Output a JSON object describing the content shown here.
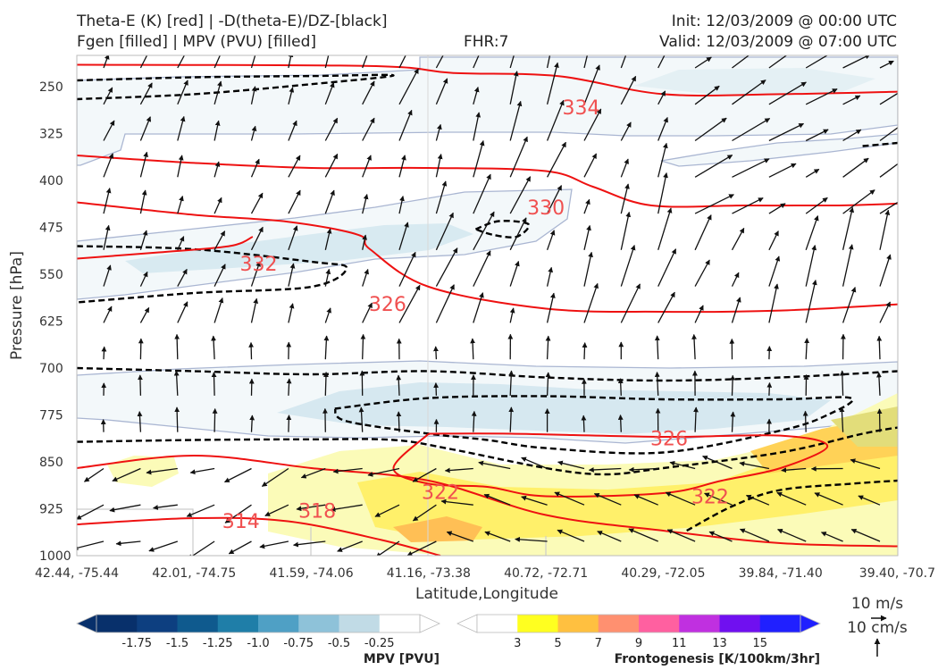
{
  "header": {
    "title_line1": "Theta-E (K) [red] | -D(theta-E)/DZ-[black]",
    "title_line2": "Fgen [filled] | MPV (PVU) [filled]",
    "fhr": "FHR:7",
    "init": "Init: 12/03/2009 @ 00:00 UTC",
    "valid": "Valid: 12/03/2009 @ 07:00 UTC"
  },
  "chart_data": {
    "type": "cross-section",
    "xlabel": "Latitude,Longitude",
    "ylabel": "Pressure [hPa]",
    "x_ticks": [
      "42.44, -75.44",
      "42.01, -74.75",
      "41.59, -74.06",
      "41.16, -73.38",
      "40.72, -72.71",
      "40.29, -72.05",
      "39.84, -71.40",
      "39.40, -70.7"
    ],
    "y_ticks": [
      250,
      325,
      400,
      475,
      550,
      625,
      700,
      775,
      850,
      925,
      1000
    ],
    "ylim": [
      1000,
      200
    ],
    "theta_e_labels": [
      {
        "value": "334",
        "x": 4.3,
        "p": 283
      },
      {
        "value": "330",
        "x": 4.0,
        "p": 443
      },
      {
        "value": "332",
        "x": 1.55,
        "p": 533
      },
      {
        "value": "326",
        "x": 2.65,
        "p": 597
      },
      {
        "value": "326",
        "x": 5.05,
        "p": 812
      },
      {
        "value": "322",
        "x": 3.1,
        "p": 898
      },
      {
        "value": "318",
        "x": 2.05,
        "p": 928
      },
      {
        "value": "314",
        "x": 1.4,
        "p": 944
      },
      {
        "value": "322",
        "x": 5.4,
        "p": 905
      }
    ],
    "theta_e_contours": [
      {
        "value": 334,
        "points": [
          [
            0,
            215
          ],
          [
            2.5,
            217
          ],
          [
            3.2,
            228
          ],
          [
            4.1,
            233
          ],
          [
            5,
            262
          ],
          [
            6,
            262
          ],
          [
            7,
            258
          ]
        ]
      },
      {
        "value": 330,
        "points": [
          [
            0,
            360
          ],
          [
            1,
            372
          ],
          [
            2,
            380
          ],
          [
            3,
            380
          ],
          [
            4,
            385
          ],
          [
            4.4,
            410
          ],
          [
            4.9,
            440
          ],
          [
            5.7,
            440
          ],
          [
            6.5,
            440
          ],
          [
            7,
            437
          ]
        ]
      },
      {
        "value": 326,
        "points": [
          [
            0,
            435
          ],
          [
            1,
            455
          ],
          [
            1.8,
            466
          ],
          [
            2.4,
            487
          ],
          [
            2.5,
            510
          ],
          [
            3,
            570
          ],
          [
            4,
            605
          ],
          [
            5,
            610
          ],
          [
            6,
            608
          ],
          [
            7,
            598
          ]
        ]
      },
      {
        "value": 322,
        "points": [
          [
            0,
            525
          ],
          [
            0.7,
            515
          ],
          [
            1.3,
            505
          ],
          [
            1.5,
            490
          ]
        ]
      },
      {
        "value": 322,
        "points": [
          [
            3.0,
            805
          ],
          [
            3.7,
            805
          ],
          [
            5,
            810
          ],
          [
            6,
            808
          ],
          [
            6.4,
            825
          ],
          [
            6,
            860
          ],
          [
            5.5,
            880
          ],
          [
            5,
            900
          ],
          [
            4,
            905
          ],
          [
            3.5,
            890
          ],
          [
            3,
            885
          ],
          [
            2.7,
            860
          ],
          [
            3,
            805
          ]
        ]
      },
      {
        "value": 318,
        "points": [
          [
            0,
            860
          ],
          [
            1,
            840
          ],
          [
            2,
            860
          ],
          [
            3,
            880
          ],
          [
            4,
            935
          ],
          [
            5,
            960
          ],
          [
            6,
            980
          ],
          [
            7,
            985
          ]
        ]
      },
      {
        "value": 314,
        "points": [
          [
            0,
            950
          ],
          [
            1,
            940
          ],
          [
            1.8,
            945
          ],
          [
            2.6,
            975
          ],
          [
            3.1,
            1000
          ]
        ]
      }
    ],
    "dthetae_dz_contours": [
      {
        "points": [
          [
            0,
            240
          ],
          [
            1,
            235
          ],
          [
            2,
            233
          ],
          [
            2.7,
            232
          ],
          [
            2,
            246
          ],
          [
            1,
            262
          ],
          [
            0,
            270
          ]
        ]
      },
      {
        "points": [
          [
            3.4,
            478
          ],
          [
            3.6,
            465
          ],
          [
            3.85,
            470
          ],
          [
            3.75,
            490
          ],
          [
            3.55,
            487
          ],
          [
            3.4,
            478
          ]
        ]
      },
      {
        "points": [
          [
            0,
            505
          ],
          [
            1,
            510
          ],
          [
            2,
            530
          ],
          [
            2.3,
            540
          ],
          [
            2,
            570
          ],
          [
            1,
            580
          ],
          [
            0,
            595
          ]
        ]
      },
      {
        "points": [
          [
            0,
            700
          ],
          [
            1,
            705
          ],
          [
            2,
            710
          ],
          [
            3,
            705
          ],
          [
            4,
            715
          ],
          [
            5,
            720
          ],
          [
            6,
            715
          ],
          [
            7,
            705
          ]
        ]
      },
      {
        "points": [
          [
            2.2,
            765
          ],
          [
            3,
            748
          ],
          [
            4,
            745
          ],
          [
            5,
            750
          ],
          [
            6,
            750
          ],
          [
            6.6,
            748
          ],
          [
            6.4,
            775
          ],
          [
            6,
            800
          ],
          [
            5,
            835
          ],
          [
            4,
            828
          ],
          [
            3.5,
            815
          ],
          [
            3,
            805
          ],
          [
            2.3,
            785
          ],
          [
            2.2,
            765
          ]
        ]
      },
      {
        "points": [
          [
            0,
            818
          ],
          [
            1,
            815
          ],
          [
            2,
            814
          ],
          [
            2.7,
            815
          ],
          [
            3.2,
            830
          ],
          [
            4,
            860
          ],
          [
            4.5,
            870
          ],
          [
            5,
            860
          ],
          [
            6,
            835
          ],
          [
            6.7,
            805
          ],
          [
            7,
            795
          ]
        ]
      },
      {
        "points": [
          [
            6.7,
            345
          ],
          [
            7,
            340
          ]
        ]
      },
      {
        "points": [
          [
            5.2,
            960
          ],
          [
            5.6,
            920
          ],
          [
            6,
            895
          ],
          [
            6.6,
            885
          ],
          [
            7,
            880
          ]
        ]
      }
    ],
    "mpv_colorbar": {
      "label": "MPV [PVU]",
      "ticks": [
        "-1.75",
        "-1.5",
        "-1.25",
        "-1.0",
        "-0.75",
        "-0.5",
        "-0.25"
      ],
      "colors": [
        "#08306b",
        "#0d3f80",
        "#0f5a8e",
        "#1f7ea8",
        "#4fa0c5",
        "#8ec2d9",
        "#c1dbe6",
        "#ffffff"
      ]
    },
    "fgen_colorbar": {
      "label": "Frontogenesis [K/100km/3hr]",
      "ticks": [
        "3",
        "5",
        "7",
        "9",
        "11",
        "13",
        "15"
      ],
      "colors": [
        "#ffffff",
        "#ffff20",
        "#ffc040",
        "#ff9070",
        "#ff60a0",
        "#c030e0",
        "#7010f0",
        "#2020ff"
      ]
    },
    "wind_reference": {
      "horizontal": "10 m/s",
      "vertical": "10 cm/s"
    }
  }
}
